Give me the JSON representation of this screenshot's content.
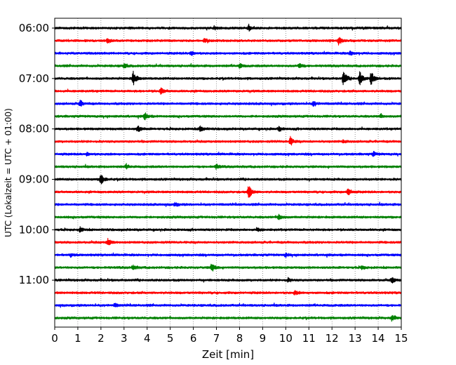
{
  "chart_data": {
    "type": "line",
    "subtype": "helicorder (seismogram drum plot)",
    "title": "",
    "xlabel": "Zeit  [min]",
    "ylabel": "UTC (Lokalzeit = UTC + 01:00)",
    "xlim": [
      0,
      15
    ],
    "x_ticks": [
      "0",
      "1",
      "2",
      "3",
      "4",
      "5",
      "6",
      "7",
      "8",
      "9",
      "10",
      "11",
      "12",
      "13",
      "14",
      "15"
    ],
    "y_ticks": [
      {
        "label": "06:00",
        "row": 0
      },
      {
        "label": "07:00",
        "row": 4
      },
      {
        "label": "08:00",
        "row": 8
      },
      {
        "label": "09:00",
        "row": 12
      },
      {
        "label": "10:00",
        "row": 16
      },
      {
        "label": "11:00",
        "row": 20
      }
    ],
    "row_minutes": 15,
    "grid": "vertical dotted lines at each minute",
    "trace_colors": [
      "#000000",
      "#ff0000",
      "#0000ff",
      "#008000"
    ],
    "series": [
      {
        "start": "06:00",
        "events": [
          {
            "x": 8.4,
            "amp": 0.35
          },
          {
            "x": 6.9,
            "amp": 0.25
          }
        ]
      },
      {
        "start": "06:15",
        "events": [
          {
            "x": 2.3,
            "amp": 0.3
          },
          {
            "x": 6.5,
            "amp": 0.25
          },
          {
            "x": 12.3,
            "amp": 0.6
          }
        ]
      },
      {
        "start": "06:30",
        "events": [
          {
            "x": 5.9,
            "amp": 0.3
          },
          {
            "x": 12.8,
            "amp": 0.25
          }
        ]
      },
      {
        "start": "06:45",
        "events": [
          {
            "x": 3.0,
            "amp": 0.3
          },
          {
            "x": 8.0,
            "amp": 0.3
          },
          {
            "x": 10.6,
            "amp": 0.35
          }
        ]
      },
      {
        "start": "07:00",
        "events": [
          {
            "x": 3.4,
            "amp": 1.0
          },
          {
            "x": 12.5,
            "amp": 1.0
          },
          {
            "x": 13.2,
            "amp": 0.9
          },
          {
            "x": 13.7,
            "amp": 0.9
          }
        ]
      },
      {
        "start": "07:15",
        "events": [
          {
            "x": 4.6,
            "amp": 0.45
          }
        ]
      },
      {
        "start": "07:30",
        "events": [
          {
            "x": 1.1,
            "amp": 0.4
          },
          {
            "x": 11.2,
            "amp": 0.3
          }
        ]
      },
      {
        "start": "07:45",
        "events": [
          {
            "x": 3.9,
            "amp": 0.45
          },
          {
            "x": 14.1,
            "amp": 0.2
          }
        ]
      },
      {
        "start": "08:00",
        "events": [
          {
            "x": 3.6,
            "amp": 0.4
          },
          {
            "x": 6.3,
            "amp": 0.4
          },
          {
            "x": 9.7,
            "amp": 0.3
          }
        ]
      },
      {
        "start": "08:15",
        "events": [
          {
            "x": 10.2,
            "amp": 0.55
          },
          {
            "x": 12.5,
            "amp": 0.2
          }
        ]
      },
      {
        "start": "08:30",
        "events": [
          {
            "x": 1.4,
            "amp": 0.2
          },
          {
            "x": 13.8,
            "amp": 0.25
          }
        ]
      },
      {
        "start": "08:45",
        "events": [
          {
            "x": 3.1,
            "amp": 0.25
          },
          {
            "x": 7.0,
            "amp": 0.3
          }
        ]
      },
      {
        "start": "09:00",
        "events": [
          {
            "x": 2.0,
            "amp": 0.8
          }
        ]
      },
      {
        "start": "09:15",
        "events": [
          {
            "x": 8.4,
            "amp": 1.0
          },
          {
            "x": 12.7,
            "amp": 0.5
          }
        ]
      },
      {
        "start": "09:30",
        "events": [
          {
            "x": 5.2,
            "amp": 0.2
          }
        ]
      },
      {
        "start": "09:45",
        "events": [
          {
            "x": 9.7,
            "amp": 0.35
          }
        ]
      },
      {
        "start": "10:00",
        "events": [
          {
            "x": 1.1,
            "amp": 0.3
          },
          {
            "x": 8.8,
            "amp": 0.2
          }
        ]
      },
      {
        "start": "10:15",
        "events": [
          {
            "x": 2.3,
            "amp": 0.45
          }
        ]
      },
      {
        "start": "10:30",
        "events": [
          {
            "x": 0.7,
            "amp": 0.2
          },
          {
            "x": 10.0,
            "amp": 0.2
          }
        ]
      },
      {
        "start": "10:45",
        "events": [
          {
            "x": 3.4,
            "amp": 0.3
          },
          {
            "x": 6.8,
            "amp": 0.55
          },
          {
            "x": 13.3,
            "amp": 0.2
          }
        ]
      },
      {
        "start": "11:00",
        "events": [
          {
            "x": 10.1,
            "amp": 0.2
          },
          {
            "x": 14.6,
            "amp": 0.35
          }
        ]
      },
      {
        "start": "11:15",
        "events": [
          {
            "x": 10.4,
            "amp": 0.25
          }
        ]
      },
      {
        "start": "11:30",
        "events": [
          {
            "x": 2.6,
            "amp": 0.2
          }
        ]
      },
      {
        "start": "11:45",
        "events": [
          {
            "x": 14.6,
            "amp": 0.35
          }
        ]
      }
    ]
  }
}
